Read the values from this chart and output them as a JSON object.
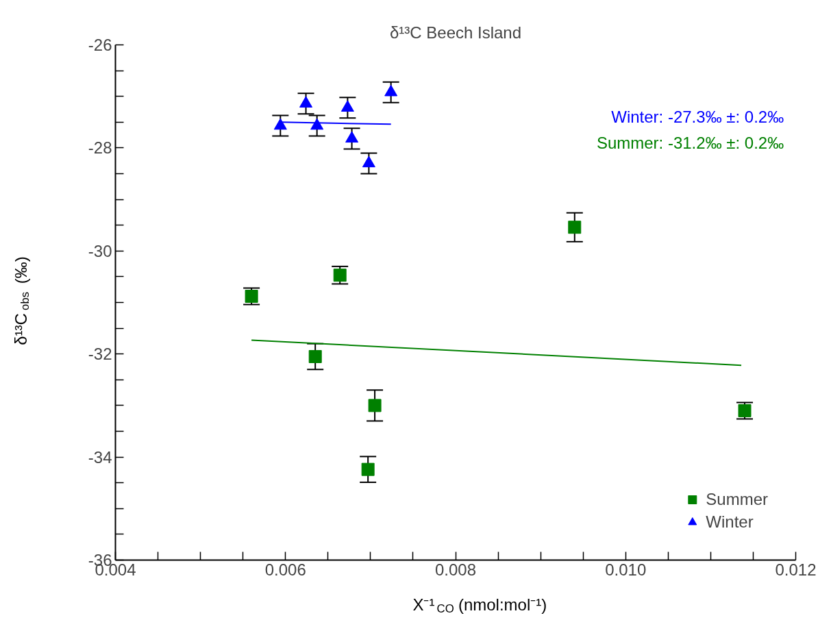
{
  "chart_data": {
    "type": "scatter",
    "title": "δ¹³C Beech Island",
    "xlabel": "X⁻¹$_{CO}$ (nmol:mol⁻¹)",
    "ylabel": "δ¹³C$_{obs}$ (‰)",
    "xlim": [
      0.004,
      0.012
    ],
    "ylim": [
      -36,
      -26
    ],
    "xticks": [
      {
        "value": 0.004,
        "label": "0.004"
      },
      {
        "value": 0.0045,
        "label": null
      },
      {
        "value": 0.005,
        "label": null
      },
      {
        "value": 0.0055,
        "label": null
      },
      {
        "value": 0.006,
        "label": "0.006"
      },
      {
        "value": 0.0065,
        "label": null
      },
      {
        "value": 0.007,
        "label": null
      },
      {
        "value": 0.0075,
        "label": null
      },
      {
        "value": 0.008,
        "label": "0.008"
      },
      {
        "value": 0.0085,
        "label": null
      },
      {
        "value": 0.009,
        "label": null
      },
      {
        "value": 0.0095,
        "label": null
      },
      {
        "value": 0.01,
        "label": "0.010"
      },
      {
        "value": 0.0105,
        "label": null
      },
      {
        "value": 0.011,
        "label": null
      },
      {
        "value": 0.0115,
        "label": null
      },
      {
        "value": 0.012,
        "label": "0.012"
      }
    ],
    "yticks": [
      -36,
      {
        "value": -35.5,
        "label": null
      },
      {
        "value": -35,
        "label": null
      },
      {
        "value": -34.5,
        "label": null
      },
      -34,
      {
        "value": -33.5,
        "label": null
      },
      {
        "value": -33,
        "label": null
      },
      {
        "value": -32.5,
        "label": null
      },
      -32,
      {
        "value": -31.5,
        "label": null
      },
      {
        "value": -31,
        "label": null
      },
      {
        "value": -30.5,
        "label": null
      },
      -30,
      {
        "value": -29.5,
        "label": null
      },
      {
        "value": -29,
        "label": null
      },
      {
        "value": -28.5,
        "label": null
      },
      -28,
      {
        "value": -27.5,
        "label": null
      },
      {
        "value": -27,
        "label": null
      },
      {
        "value": -26.5,
        "label": null
      },
      -26
    ],
    "grid": false,
    "legend": "bottom right",
    "series": [
      {
        "name": "Summer",
        "marker": "square",
        "color": "#008000",
        "x": [
          0.0056,
          0.00664,
          0.00635,
          0.00705,
          0.00697,
          0.0094,
          0.0114
        ],
        "values": [
          -30.88,
          -30.47,
          -32.05,
          -33.0,
          -34.24,
          -29.54,
          -33.1
        ],
        "errors": [
          0.16,
          0.17,
          0.25,
          0.3,
          0.25,
          0.28,
          0.16
        ]
      },
      {
        "name": "Winter",
        "marker": "triangle",
        "color": "#0000ff",
        "x": [
          0.00594,
          0.00624,
          0.00637,
          0.00673,
          0.00678,
          0.00698,
          0.00724
        ],
        "values": [
          -27.57,
          -27.14,
          -27.57,
          -27.22,
          -27.82,
          -28.3,
          -26.92
        ],
        "errors": [
          0.2,
          0.2,
          0.2,
          0.2,
          0.2,
          0.2,
          0.2
        ]
      },
      {
        "type": "line",
        "color": "#008000",
        "x": [
          0.0056,
          0.01136
        ],
        "values": [
          -31.73,
          -32.22
        ]
      },
      {
        "type": "line",
        "color": "#0000ff",
        "x": [
          0.00594,
          0.00724
        ],
        "values": [
          -27.5,
          -27.54
        ]
      }
    ],
    "annotations": [
      "Winter: -27.3‰ ±:   0.2‰",
      "Summer: -31.2‰ ±:   0.2‰"
    ]
  }
}
